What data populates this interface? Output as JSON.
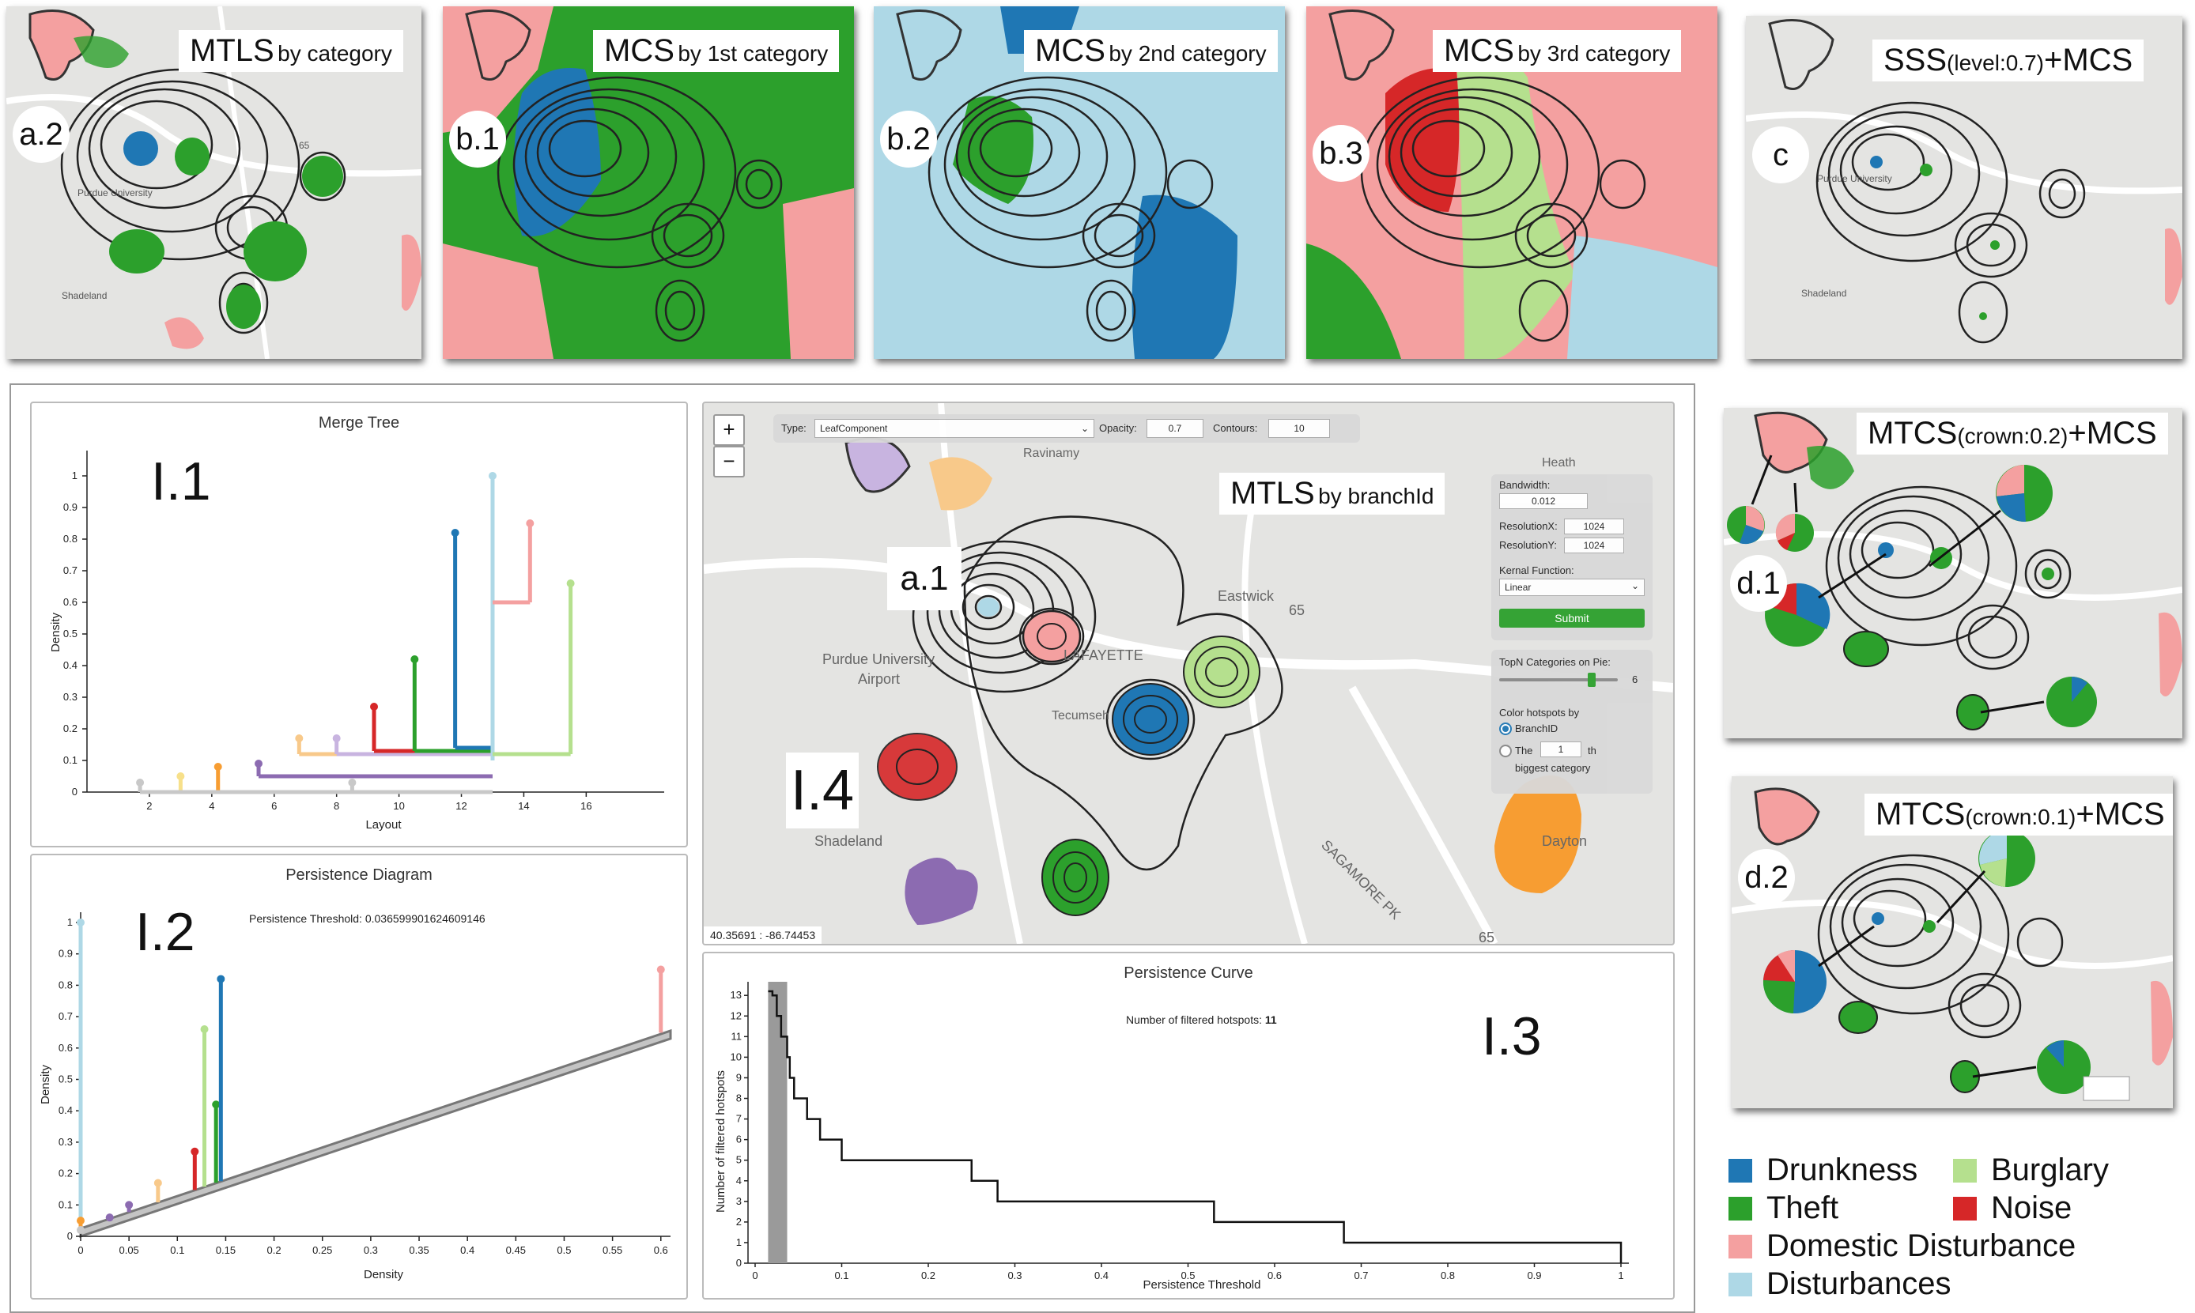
{
  "colors": {
    "drunkness": "#1f77b4",
    "theft": "#2ca02c",
    "domestic": "#f4a0a0",
    "disturbances": "#aed8e6",
    "burglary": "#b5e08e",
    "noise": "#d62728",
    "orange": "#f79d32",
    "purple": "#8c6bb1",
    "map": "#e4e4e2"
  },
  "top_maps": [
    {
      "badge": "a.2",
      "title": "MTLS",
      "subtitle": "by category"
    },
    {
      "badge": "b.1",
      "title": "MCS",
      "subtitle": "by 1st category"
    },
    {
      "badge": "b.2",
      "title": "MCS",
      "subtitle": "by 2nd category"
    },
    {
      "badge": "b.3",
      "title": "MCS",
      "subtitle": "by 3rd category"
    },
    {
      "badge": "c",
      "title": "SSS",
      "subtitle": "(level:0.7)",
      "suffix": "+MCS"
    }
  ],
  "side_maps": [
    {
      "badge": "d.1",
      "title": "MTCS",
      "subtitle": "(crown:0.2)",
      "suffix": "+MCS"
    },
    {
      "badge": "d.2",
      "title": "MTCS",
      "subtitle": "(crown:0.1)",
      "suffix": "+MCS"
    }
  ],
  "map_labels": {
    "purdue": "Purdue University",
    "airport": "Airport",
    "shadeland": "Shadeland",
    "lafayette": "LAFAYETTE",
    "ravinamy": "Ravinamy",
    "heath": "Heath",
    "dayton": "Dayton",
    "sagamore": "SAGAMORE PK",
    "route65": "65",
    "eastwick": "Eastwick",
    "tecumseh": "Tecumseh"
  },
  "merge_tree": {
    "title": "Merge Tree",
    "label": "I.1",
    "xlabel": "Layout",
    "ylabel": "Density",
    "xticks": [
      "2",
      "4",
      "6",
      "8",
      "10",
      "12",
      "14",
      "16"
    ],
    "yticks": [
      "0",
      "0.1",
      "0.2",
      "0.3",
      "0.4",
      "0.5",
      "0.6",
      "0.7",
      "0.8",
      "0.9",
      "1"
    ]
  },
  "persistence_diagram": {
    "title": "Persistence Diagram",
    "label": "I.2",
    "threshold_text": "Persistence Threshold: 0.036599901624609146",
    "xlabel": "Density",
    "ylabel": "Density",
    "xticks": [
      "0",
      "0.05",
      "0.1",
      "0.15",
      "0.2",
      "0.25",
      "0.3",
      "0.35",
      "0.4",
      "0.45",
      "0.5",
      "0.55",
      "0.6"
    ],
    "yticks": [
      "0",
      "0.1",
      "0.2",
      "0.3",
      "0.4",
      "0.5",
      "0.6",
      "0.7",
      "0.8",
      "0.9",
      "1"
    ]
  },
  "persistence_curve": {
    "title": "Persistence Curve",
    "label": "I.3",
    "count_label": "Number of filtered hotspots:",
    "count_value": "11",
    "xlabel": "Persistence Threshold",
    "ylabel": "Number of filtered hotspots",
    "xticks": [
      "0",
      "0.1",
      "0.2",
      "0.3",
      "0.4",
      "0.5",
      "0.6",
      "0.7",
      "0.8",
      "0.9",
      "1"
    ],
    "yticks": [
      "0",
      "1",
      "2",
      "3",
      "4",
      "5",
      "6",
      "7",
      "8",
      "9",
      "10",
      "11",
      "12",
      "13"
    ]
  },
  "main_map": {
    "badge": "a.1",
    "label": "I.4",
    "title": "MTLS",
    "subtitle": "by branchId",
    "zoom_in": "+",
    "zoom_out": "−",
    "coords": "40.35691 : -86.74453",
    "toolbar": {
      "type_label": "Type:",
      "type_value": "LeafComponent",
      "opacity_label": "Opacity:",
      "opacity_value": "0.7",
      "contours_label": "Contours:",
      "contours_value": "10"
    },
    "side": {
      "bandwidth_label": "Bandwidth:",
      "bandwidth_value": "0.012",
      "resx_label": "ResolutionX:",
      "resx_value": "1024",
      "resy_label": "ResolutionY:",
      "resy_value": "1024",
      "kernel_label": "Kernal Function:",
      "kernel_value": "Linear",
      "submit": "Submit",
      "topn_label": "TopN Categories on Pie:",
      "topn_value": "6",
      "color_label": "Color hotspots by",
      "opt1": "BranchID",
      "opt2_pre": "The",
      "opt2_value": "1",
      "opt2_post": "th",
      "opt2_line2": "biggest category"
    }
  },
  "legend": [
    {
      "label": "Drunkness",
      "color": "#1f77b4"
    },
    {
      "label": "Burglary",
      "color": "#b5e08e"
    },
    {
      "label": "Theft",
      "color": "#2ca02c"
    },
    {
      "label": "Noise",
      "color": "#d62728"
    },
    {
      "label": "Domestic Disturbance",
      "color": "#f4a0a0"
    },
    {
      "label": "Disturbances",
      "color": "#aed8e6"
    }
  ]
}
